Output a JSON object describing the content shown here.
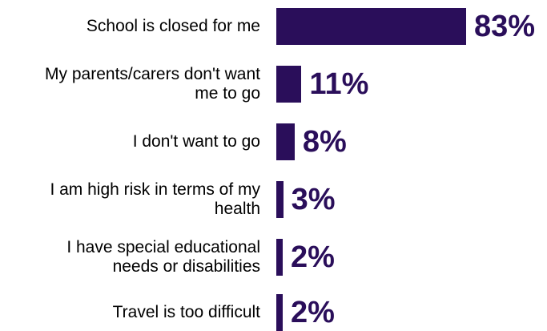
{
  "chart_data": {
    "type": "bar",
    "orientation": "horizontal",
    "categories": [
      "School is closed for me",
      "My parents/carers don't want me to go",
      "I don't want to go",
      "I am high risk in terms of my health",
      "I have special educational needs or disabilities",
      "Travel is too difficult"
    ],
    "category_display": [
      [
        "School is closed for me"
      ],
      [
        "My parents/carers don't want",
        "me to go"
      ],
      [
        "I don't want to go"
      ],
      [
        "I am high risk in terms of my",
        "health"
      ],
      [
        "I have special educational",
        "needs or disabilities"
      ],
      [
        "Travel is too difficult"
      ]
    ],
    "values": [
      83,
      11,
      8,
      3,
      2,
      2
    ],
    "value_labels": [
      "83%",
      "11%",
      "8%",
      "3%",
      "2%",
      "2%"
    ],
    "unit": "%",
    "xlim": [
      0,
      83
    ],
    "grid": false,
    "legend": "none",
    "bar_color": "#2a0e5a",
    "label_color": "#2a0e5a"
  }
}
